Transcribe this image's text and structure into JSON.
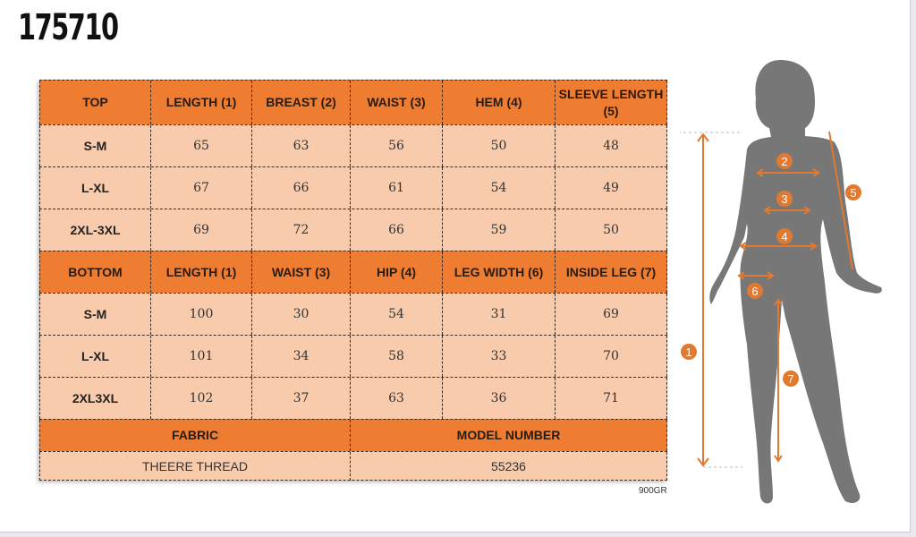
{
  "product_code": "175710",
  "top_table": {
    "headers": [
      "TOP",
      "LENGTH (1)",
      "BREAST (2)",
      "WAIST (3)",
      "HEM (4)",
      "SLEEVE LENGTH (5)"
    ],
    "rows": [
      [
        "S-M",
        "65",
        "63",
        "56",
        "50",
        "48"
      ],
      [
        "L-XL",
        "67",
        "66",
        "61",
        "54",
        "49"
      ],
      [
        "2XL-3XL",
        "69",
        "72",
        "66",
        "59",
        "50"
      ]
    ]
  },
  "bottom_table": {
    "headers": [
      "BOTTOM",
      "LENGTH (1)",
      "WAIST (3)",
      "HIP (4)",
      "LEG WIDTH (6)",
      "INSIDE LEG (7)"
    ],
    "rows": [
      [
        "S-M",
        "100",
        "30",
        "54",
        "31",
        "69"
      ],
      [
        "L-XL",
        "101",
        "34",
        "58",
        "33",
        "70"
      ],
      [
        "2XL3XL",
        "102",
        "37",
        "63",
        "36",
        "71"
      ]
    ]
  },
  "info": {
    "fabric_label": "FABRIC",
    "fabric_value": "THEERE THREAD",
    "model_label": "MODEL NUMBER",
    "model_value": "55236"
  },
  "weight": "900GR",
  "figure_markers": [
    "1",
    "2",
    "3",
    "4",
    "5",
    "6",
    "7"
  ],
  "colors": {
    "header": "#ee7d31",
    "body": "#f8cbad",
    "silhouette": "#777777",
    "arrow": "#e07a30"
  }
}
